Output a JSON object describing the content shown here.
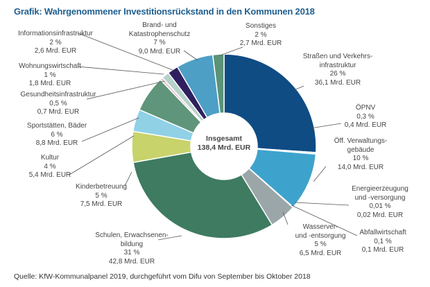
{
  "title": "Grafik: Wahrgenommener Investitionsrückstand in den Kommunen 2018",
  "source": "Quelle: KfW-Kommunalpanel 2019, durchgeführt vom Difu von September bis Oktober 2018",
  "chart_data": {
    "type": "pie",
    "variant": "donut",
    "title": "Grafik: Wahrgenommener Investitionsrückstand in den Kommunen 2018",
    "center_label": [
      "Insgesamt",
      "138,4 Mrd. EUR"
    ],
    "unit": "Mrd. EUR",
    "slices": [
      {
        "name": "Straßen und Verkehrsinfrastruktur",
        "label_lines": [
          "Straßen und Verkehrs-",
          "infrastruktur"
        ],
        "percent_label": "26 %",
        "value_label": "36,1 Mrd. EUR",
        "value": 36.1,
        "color": "#0f4c84"
      },
      {
        "name": "ÖPNV",
        "label_lines": [
          "ÖPNV"
        ],
        "percent_label": "0,3 %",
        "value_label": "0,4 Mrd. EUR",
        "value": 0.4,
        "color": "#c9dcd5"
      },
      {
        "name": "Öff. Verwaltungsgebäude",
        "label_lines": [
          "Öff. Verwaltungs-",
          "gebäude"
        ],
        "percent_label": "10 %",
        "value_label": "14,0 Mrd. EUR",
        "value": 14.0,
        "color": "#3ea3cc"
      },
      {
        "name": "Energieerzeugung und -versorgung",
        "label_lines": [
          "Energieerzeugung",
          "und -versorgung"
        ],
        "percent_label": "0,01 %",
        "value_label": "0,02 Mrd. EUR",
        "value": 0.02,
        "color": "#7a8a8e"
      },
      {
        "name": "Abfallwirtschaft",
        "label_lines": [
          "Abfallwirtschaft"
        ],
        "percent_label": "0,1 %",
        "value_label": "0,1 Mrd. EUR",
        "value": 0.1,
        "color": "#5d6b6f"
      },
      {
        "name": "Wasserver- und -entsorgung",
        "label_lines": [
          "Wasserver-",
          "und -entsorgung"
        ],
        "percent_label": "5 %",
        "value_label": "6,5 Mrd. EUR",
        "value": 6.5,
        "color": "#9ba6a9"
      },
      {
        "name": "Schulen, Erwachsenenbildung",
        "label_lines": [
          "Schulen, Erwachsenen-",
          "bildung"
        ],
        "percent_label": "31 %",
        "value_label": "42,8 Mrd. EUR",
        "value": 42.8,
        "color": "#3e7b61"
      },
      {
        "name": "Kinderbetreuung",
        "label_lines": [
          "Kinderbetreuung"
        ],
        "percent_label": "5 %",
        "value_label": "7,5 Mrd. EUR",
        "value": 7.5,
        "color": "#c8d36c"
      },
      {
        "name": "Kultur",
        "label_lines": [
          "Kultur"
        ],
        "percent_label": "4 %",
        "value_label": "5,4 Mrd. EUR",
        "value": 5.4,
        "color": "#90d1e6"
      },
      {
        "name": "Sportstätten, Bäder",
        "label_lines": [
          "Sportstätten, Bäder"
        ],
        "percent_label": "6 %",
        "value_label": "8,8 Mrd. EUR",
        "value": 8.8,
        "color": "#5f957a"
      },
      {
        "name": "Gesundheitsinfrastruktur",
        "label_lines": [
          "Gesundheitsinfrastruktur"
        ],
        "percent_label": "0,5 %",
        "value_label": "0,7 Mrd. EUR",
        "value": 0.7,
        "color": "#e7c6d4"
      },
      {
        "name": "Wohnungswirtschaft",
        "label_lines": [
          "Wohnungswirtschaft"
        ],
        "percent_label": "1 %",
        "value_label": "1,8 Mrd. EUR",
        "value": 1.8,
        "color": "#b5d2ca"
      },
      {
        "name": "Informationsinfrastruktur",
        "label_lines": [
          "Informationsinfrastruktur"
        ],
        "percent_label": "2 %",
        "value_label": "2,6 Mrd. EUR",
        "value": 2.6,
        "color": "#2f1f5e"
      },
      {
        "name": "Brand- und Katastrophenschutz",
        "label_lines": [
          "Brand- und",
          "Katastrophenschutz"
        ],
        "percent_label": "7 %",
        "value_label": "9,0 Mrd. EUR",
        "value": 9.0,
        "color": "#4d9fc5"
      },
      {
        "name": "Sonstiges",
        "label_lines": [
          "Sonstiges"
        ],
        "percent_label": "2 %",
        "value_label": "2,7 Mrd. EUR",
        "value": 2.7,
        "color": "#5a9378"
      }
    ]
  }
}
